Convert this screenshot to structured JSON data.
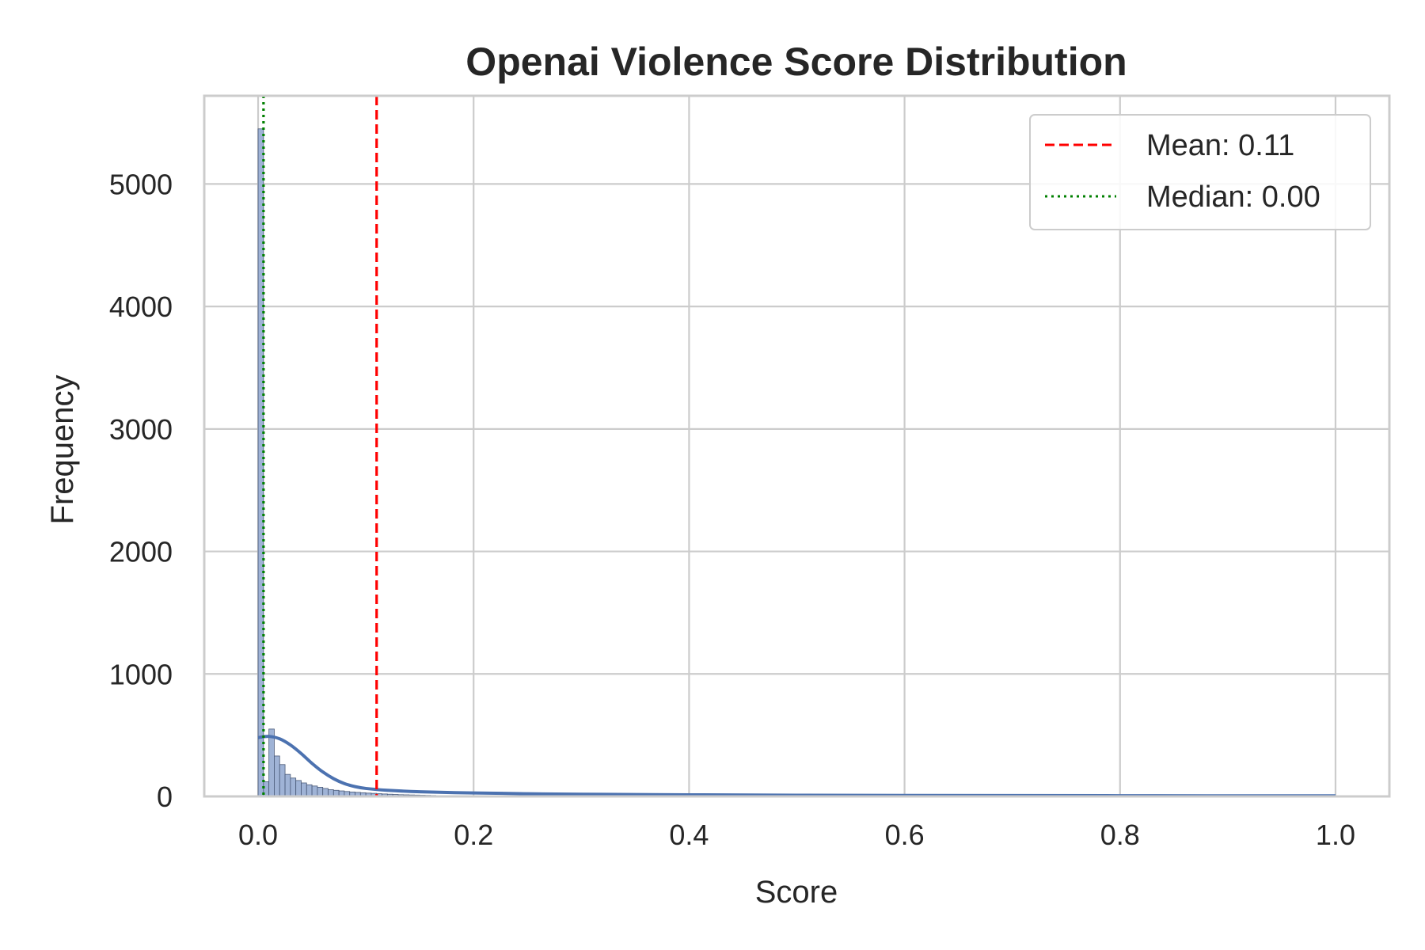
{
  "chart_data": {
    "type": "bar",
    "title": "Openai Violence Score Distribution",
    "xlabel": "Score",
    "ylabel": "Frequency",
    "xlim": [
      -0.05,
      1.05
    ],
    "ylim": [
      0,
      5720
    ],
    "xticks": [
      "0.0",
      "0.2",
      "0.4",
      "0.6",
      "0.8",
      "1.0"
    ],
    "xtick_values": [
      0.0,
      0.2,
      0.4,
      0.6,
      0.8,
      1.0
    ],
    "yticks": [
      "0",
      "1000",
      "2000",
      "3000",
      "4000",
      "5000"
    ],
    "ytick_values": [
      0,
      1000,
      2000,
      3000,
      4000,
      5000
    ],
    "grid": true,
    "legend_position": "top-right",
    "histogram": {
      "bin_width": 0.005,
      "bin_starts": [
        0.0,
        0.005,
        0.01,
        0.015,
        0.02,
        0.025,
        0.03,
        0.035,
        0.04,
        0.045,
        0.05,
        0.055,
        0.06,
        0.065,
        0.07,
        0.075,
        0.08,
        0.085,
        0.09,
        0.095,
        0.1,
        0.105,
        0.11,
        0.115,
        0.12,
        0.125,
        0.13,
        0.135,
        0.14,
        0.145,
        0.15,
        0.155,
        0.16,
        0.165,
        0.17,
        0.175,
        0.18,
        0.185,
        0.19,
        0.195,
        0.2,
        0.205,
        0.21,
        0.215,
        0.22,
        0.225,
        0.23,
        0.235,
        0.24,
        0.245
      ],
      "counts": [
        5450,
        120,
        550,
        330,
        260,
        180,
        150,
        130,
        110,
        95,
        85,
        75,
        65,
        55,
        50,
        45,
        40,
        36,
        33,
        30,
        27,
        25,
        22,
        20,
        18,
        16,
        14,
        13,
        12,
        11,
        10,
        9,
        8,
        7,
        7,
        6,
        6,
        5,
        5,
        5,
        4,
        4,
        4,
        3,
        3,
        3,
        3,
        2,
        2,
        2
      ]
    },
    "kde": {
      "x": [
        0.0,
        0.01,
        0.02,
        0.03,
        0.04,
        0.05,
        0.06,
        0.07,
        0.08,
        0.09,
        0.1,
        0.12,
        0.15,
        0.2,
        0.25,
        0.3,
        0.4,
        0.5,
        0.6,
        0.7,
        0.8,
        0.9,
        1.0
      ],
      "y": [
        480,
        490,
        470,
        420,
        350,
        270,
        200,
        145,
        105,
        80,
        65,
        50,
        38,
        28,
        22,
        18,
        13,
        10,
        8,
        7,
        6,
        5,
        5
      ]
    },
    "reference_lines": [
      {
        "name": "Mean: 0.11",
        "x": 0.11,
        "color": "#ff0000",
        "style": "dashed"
      },
      {
        "name": "Median: 0.00",
        "x": 0.005,
        "color": "#008000",
        "style": "dotted"
      }
    ],
    "colors": {
      "bars": "#9fb3d6",
      "bar_edge": "#4a5a78",
      "kde": "#4c72b0",
      "grid": "#cccccc",
      "frame": "#cccccc"
    }
  }
}
